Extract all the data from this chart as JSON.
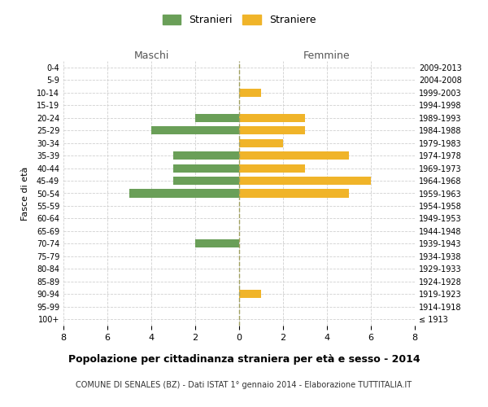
{
  "age_groups": [
    "100+",
    "95-99",
    "90-94",
    "85-89",
    "80-84",
    "75-79",
    "70-74",
    "65-69",
    "60-64",
    "55-59",
    "50-54",
    "45-49",
    "40-44",
    "35-39",
    "30-34",
    "25-29",
    "20-24",
    "15-19",
    "10-14",
    "5-9",
    "0-4"
  ],
  "birth_years": [
    "≤ 1913",
    "1914-1918",
    "1919-1923",
    "1924-1928",
    "1929-1933",
    "1934-1938",
    "1939-1943",
    "1944-1948",
    "1949-1953",
    "1954-1958",
    "1959-1963",
    "1964-1968",
    "1969-1973",
    "1974-1978",
    "1979-1983",
    "1984-1988",
    "1989-1993",
    "1994-1998",
    "1999-2003",
    "2004-2008",
    "2009-2013"
  ],
  "males": [
    0,
    0,
    0,
    0,
    0,
    0,
    2,
    0,
    0,
    0,
    5,
    3,
    3,
    3,
    0,
    4,
    2,
    0,
    0,
    0,
    0
  ],
  "females": [
    0,
    0,
    1,
    0,
    0,
    0,
    0,
    0,
    0,
    0,
    5,
    6,
    3,
    5,
    2,
    3,
    3,
    0,
    1,
    0,
    0
  ],
  "male_color": "#6a9f58",
  "female_color": "#f0b429",
  "title": "Popolazione per cittadinanza straniera per età e sesso - 2014",
  "subtitle": "COMUNE DI SENALES (BZ) - Dati ISTAT 1° gennaio 2014 - Elaborazione TUTTITALIA.IT",
  "ylabel_left": "Fasce di età",
  "xlabel_left": "Maschi",
  "xlabel_right": "Femmine",
  "legend_male": "Stranieri",
  "legend_female": "Straniere",
  "xlim": 8,
  "background_color": "#ffffff",
  "grid_color": "#d0d0d0"
}
